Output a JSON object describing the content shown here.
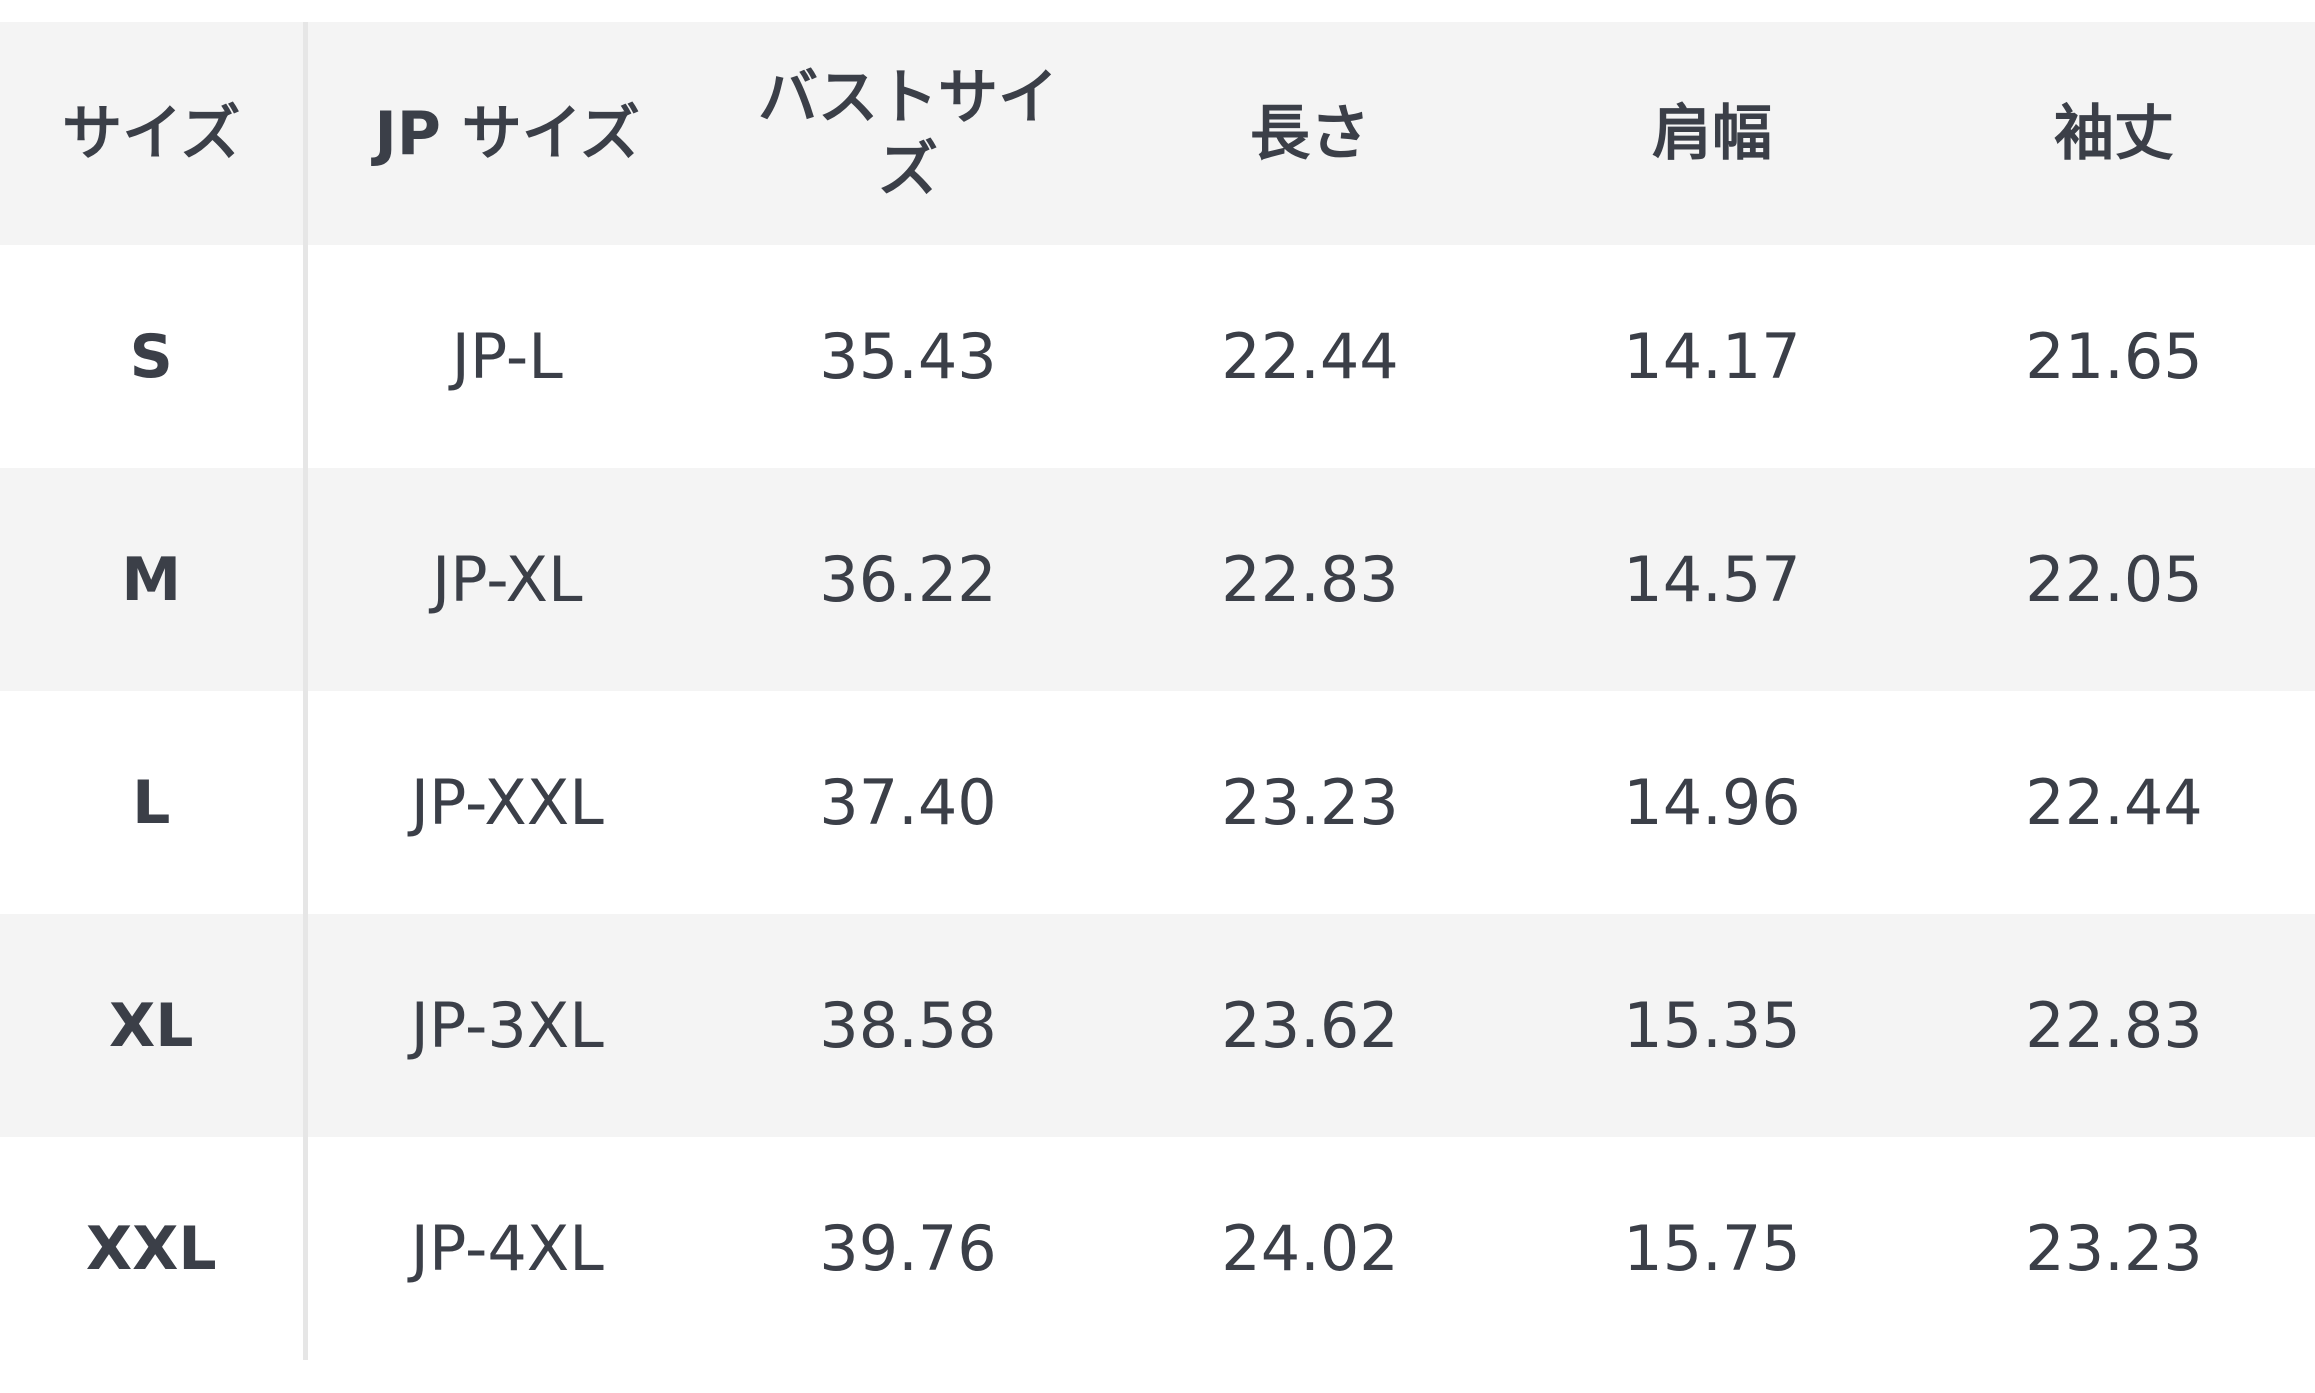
{
  "table": {
    "headers": [
      "サイズ",
      "JP サイズ",
      "バストサイズ",
      "長さ",
      "肩幅",
      "袖丈"
    ],
    "rows": [
      [
        "S",
        "JP-L",
        "35.43",
        "22.44",
        "14.17",
        "21.65"
      ],
      [
        "M",
        "JP-XL",
        "36.22",
        "22.83",
        "14.57",
        "22.05"
      ],
      [
        "L",
        "JP-XXL",
        "37.40",
        "23.23",
        "14.96",
        "22.44"
      ],
      [
        "XL",
        "JP-3XL",
        "38.58",
        "23.62",
        "15.35",
        "22.83"
      ],
      [
        "XXL",
        "JP-4XL",
        "39.76",
        "24.02",
        "15.75",
        "23.23"
      ]
    ]
  }
}
